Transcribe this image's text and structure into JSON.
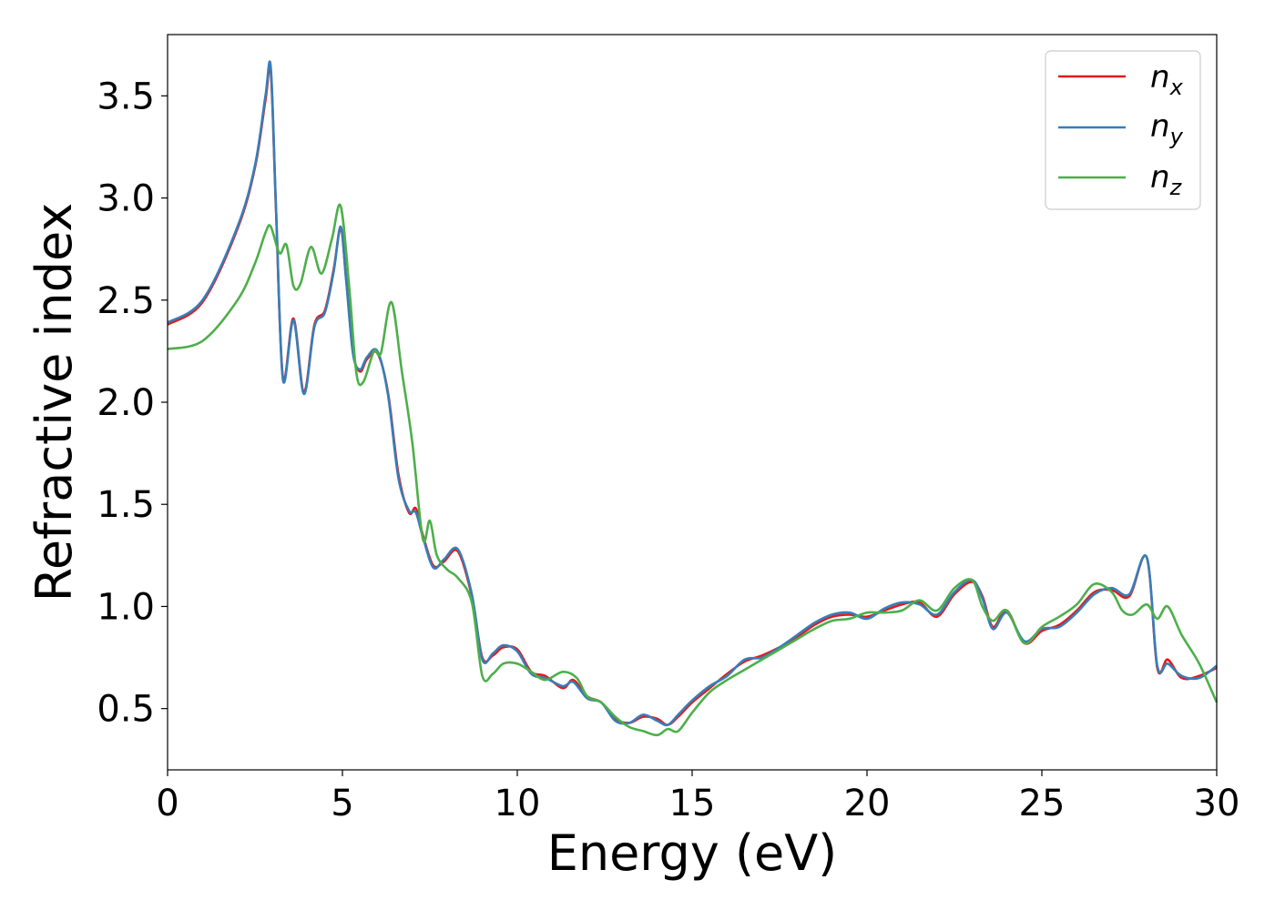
{
  "chart_data": {
    "type": "line",
    "title": "",
    "xlabel": "Energy (eV)",
    "ylabel": "Refractive index",
    "xlim": [
      0,
      30
    ],
    "ylim": [
      0.2,
      3.8
    ],
    "x_ticks": [
      "0",
      "5",
      "10",
      "15",
      "20",
      "25",
      "30"
    ],
    "y_ticks": [
      "0.5",
      "1.0",
      "1.5",
      "2.0",
      "2.5",
      "3.0",
      "3.5"
    ],
    "x_tick_values": [
      0,
      5,
      10,
      15,
      20,
      25,
      30
    ],
    "y_tick_values": [
      0.5,
      1.0,
      1.5,
      2.0,
      2.5,
      3.0,
      3.5
    ],
    "grid": false,
    "legend_position": "top-right",
    "series": [
      {
        "name": "n_x",
        "label_main": "n",
        "label_sub": "x",
        "color": "#e41a1c",
        "x": [
          0,
          1,
          2,
          2.5,
          2.8,
          2.95,
          3.1,
          3.3,
          3.6,
          3.9,
          4.2,
          4.5,
          4.75,
          4.95,
          5.1,
          5.3,
          5.5,
          5.7,
          6.0,
          6.3,
          6.6,
          6.9,
          7.1,
          7.3,
          7.6,
          7.9,
          8.3,
          8.7,
          9.0,
          9.3,
          9.6,
          10.0,
          10.4,
          10.8,
          11.3,
          11.6,
          12.0,
          12.4,
          12.8,
          13.2,
          13.6,
          14.0,
          14.3,
          14.6,
          15.0,
          15.5,
          16.0,
          16.5,
          17.0,
          17.5,
          18.0,
          18.5,
          19.0,
          19.5,
          20.0,
          20.5,
          21.0,
          21.5,
          22.0,
          22.5,
          23.0,
          23.3,
          23.6,
          24.0,
          24.5,
          25.0,
          25.5,
          26.0,
          26.5,
          27.0,
          27.5,
          28.0,
          28.3,
          28.6,
          29.0,
          29.5,
          30.0
        ],
        "y": [
          2.38,
          2.49,
          2.85,
          3.15,
          3.48,
          3.62,
          2.95,
          2.12,
          2.41,
          2.05,
          2.38,
          2.45,
          2.65,
          2.85,
          2.62,
          2.25,
          2.15,
          2.21,
          2.24,
          2.05,
          1.65,
          1.46,
          1.48,
          1.35,
          1.2,
          1.22,
          1.27,
          1.05,
          0.75,
          0.76,
          0.8,
          0.79,
          0.68,
          0.66,
          0.6,
          0.64,
          0.56,
          0.53,
          0.45,
          0.43,
          0.46,
          0.45,
          0.42,
          0.46,
          0.53,
          0.6,
          0.67,
          0.73,
          0.76,
          0.8,
          0.85,
          0.91,
          0.95,
          0.96,
          0.95,
          0.98,
          1.01,
          1.02,
          0.95,
          1.06,
          1.12,
          1.05,
          0.9,
          0.98,
          0.82,
          0.88,
          0.91,
          0.98,
          1.07,
          1.08,
          1.05,
          1.24,
          0.7,
          0.74,
          0.65,
          0.66,
          0.7
        ]
      },
      {
        "name": "n_y",
        "label_main": "n",
        "label_sub": "y",
        "color": "#377eb8",
        "x": [
          0,
          1,
          2,
          2.5,
          2.8,
          2.95,
          3.1,
          3.3,
          3.6,
          3.9,
          4.2,
          4.5,
          4.75,
          4.95,
          5.1,
          5.3,
          5.5,
          5.7,
          6.0,
          6.3,
          6.6,
          6.9,
          7.1,
          7.3,
          7.6,
          7.9,
          8.3,
          8.7,
          9.0,
          9.3,
          9.6,
          10.0,
          10.4,
          10.8,
          11.3,
          11.6,
          12.0,
          12.4,
          12.8,
          13.2,
          13.6,
          14.0,
          14.3,
          14.6,
          15.0,
          15.5,
          16.0,
          16.5,
          17.0,
          17.5,
          18.0,
          18.5,
          19.0,
          19.5,
          20.0,
          20.5,
          21.0,
          21.5,
          22.0,
          22.5,
          23.0,
          23.3,
          23.6,
          24.0,
          24.5,
          25.0,
          25.5,
          26.0,
          26.5,
          27.0,
          27.5,
          28.0,
          28.3,
          28.6,
          29.0,
          29.5,
          30.0
        ],
        "y": [
          2.39,
          2.5,
          2.86,
          3.16,
          3.5,
          3.64,
          2.96,
          2.11,
          2.4,
          2.04,
          2.37,
          2.44,
          2.64,
          2.86,
          2.61,
          2.24,
          2.16,
          2.22,
          2.25,
          2.04,
          1.63,
          1.47,
          1.46,
          1.34,
          1.19,
          1.23,
          1.28,
          1.06,
          0.74,
          0.77,
          0.81,
          0.78,
          0.67,
          0.65,
          0.61,
          0.63,
          0.55,
          0.53,
          0.44,
          0.43,
          0.47,
          0.44,
          0.42,
          0.47,
          0.54,
          0.61,
          0.66,
          0.74,
          0.75,
          0.8,
          0.86,
          0.92,
          0.96,
          0.97,
          0.94,
          0.99,
          1.02,
          1.01,
          0.96,
          1.07,
          1.13,
          1.04,
          0.89,
          0.97,
          0.83,
          0.89,
          0.9,
          0.97,
          1.06,
          1.09,
          1.06,
          1.24,
          0.71,
          0.72,
          0.66,
          0.65,
          0.71
        ]
      },
      {
        "name": "n_z",
        "label_main": "n",
        "label_sub": "z",
        "color": "#4daf4a",
        "x": [
          0,
          1,
          2,
          2.5,
          2.8,
          2.95,
          3.2,
          3.4,
          3.6,
          3.8,
          4.1,
          4.4,
          4.7,
          4.95,
          5.2,
          5.4,
          5.6,
          5.9,
          6.1,
          6.4,
          6.7,
          7.0,
          7.3,
          7.5,
          7.7,
          8.0,
          8.3,
          8.7,
          9.0,
          9.3,
          9.6,
          10.0,
          10.4,
          10.8,
          11.3,
          11.7,
          12.0,
          12.4,
          12.8,
          13.2,
          13.6,
          14.0,
          14.3,
          14.6,
          15.0,
          15.5,
          16.0,
          16.5,
          17.0,
          17.5,
          18.0,
          18.5,
          19.0,
          19.5,
          20.0,
          20.5,
          21.0,
          21.5,
          22.0,
          22.5,
          23.0,
          23.3,
          23.6,
          24.0,
          24.5,
          25.0,
          25.5,
          26.0,
          26.5,
          27.0,
          27.3,
          27.6,
          28.0,
          28.3,
          28.6,
          29.0,
          29.5,
          30.0
        ],
        "y": [
          2.26,
          2.3,
          2.5,
          2.68,
          2.83,
          2.86,
          2.73,
          2.77,
          2.57,
          2.58,
          2.76,
          2.63,
          2.8,
          2.96,
          2.55,
          2.14,
          2.1,
          2.25,
          2.24,
          2.49,
          2.15,
          1.8,
          1.33,
          1.42,
          1.25,
          1.18,
          1.14,
          1.02,
          0.66,
          0.67,
          0.72,
          0.72,
          0.68,
          0.64,
          0.68,
          0.65,
          0.56,
          0.53,
          0.46,
          0.41,
          0.39,
          0.37,
          0.4,
          0.39,
          0.48,
          0.58,
          0.64,
          0.69,
          0.74,
          0.79,
          0.84,
          0.89,
          0.93,
          0.94,
          0.97,
          0.97,
          0.98,
          1.03,
          0.98,
          1.09,
          1.13,
          1.0,
          0.93,
          0.98,
          0.82,
          0.9,
          0.95,
          1.01,
          1.11,
          1.07,
          0.98,
          0.96,
          1.01,
          0.94,
          1.0,
          0.86,
          0.72,
          0.53
        ]
      }
    ]
  }
}
